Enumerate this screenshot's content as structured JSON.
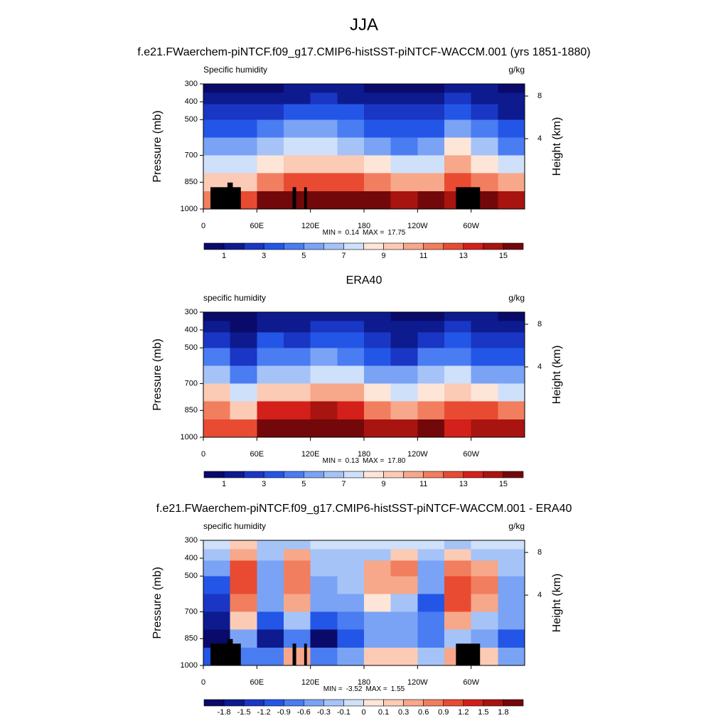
{
  "title": "JJA",
  "chart_data": [
    {
      "type": "contour",
      "title": "f.e21.FWaerchem-piNTCF.f09_g17.CMIP6-histSST-piNTCF-WACCM.001 (yrs 1851-1880)",
      "left_label": "Specific humidity",
      "right_label": "g/kg",
      "ylabel": "Pressure (mb)",
      "y2label": "Height (km)",
      "xlim": [
        0,
        360
      ],
      "xticks": [
        0,
        {
          "value": 60,
          "label": "60E"
        },
        {
          "value": 120,
          "label": "120E"
        },
        180,
        {
          "value": 240,
          "label": "120W"
        },
        {
          "value": 300,
          "label": "60W"
        }
      ],
      "ylim": [
        1000,
        300
      ],
      "yticks": [
        300,
        400,
        500,
        700,
        850,
        1000
      ],
      "y2ticks": [
        8,
        4
      ],
      "min_label": "MIN =",
      "min": 0.14,
      "max_label": "MAX =",
      "max": 17.75,
      "orography": true,
      "x": [
        15,
        45,
        75,
        105,
        135,
        165,
        195,
        225,
        255,
        285,
        315,
        345
      ],
      "levels": [
        325,
        375,
        450,
        550,
        650,
        750,
        850,
        950
      ],
      "z": [
        [
          0.7,
          0.8,
          0.9,
          1.1,
          1.2,
          1.1,
          0.9,
          0.7,
          0.8,
          1.4,
          1.0,
          0.7
        ],
        [
          1.2,
          1.3,
          1.6,
          1.9,
          2.0,
          1.8,
          1.5,
          1.2,
          1.3,
          2.4,
          1.6,
          1.1
        ],
        [
          2.0,
          2.3,
          2.8,
          3.2,
          3.3,
          3.0,
          2.5,
          2.0,
          2.2,
          3.8,
          2.6,
          1.8
        ],
        [
          3.4,
          3.6,
          4.3,
          5.0,
          5.0,
          4.6,
          3.8,
          3.1,
          3.5,
          5.8,
          4.0,
          3.0
        ],
        [
          5.0,
          5.5,
          6.2,
          7.0,
          7.0,
          6.6,
          5.6,
          4.8,
          5.3,
          8.0,
          6.0,
          4.6
        ],
        [
          7.5,
          7.8,
          8.6,
          9.5,
          9.5,
          9.2,
          8.0,
          7.0,
          7.6,
          10.2,
          8.5,
          7.0
        ],
        [
          9.5,
          9.0,
          11.5,
          12.5,
          12.5,
          12.2,
          11.0,
          10.0,
          10.5,
          12.5,
          11.5,
          10.0
        ],
        [
          11,
          12,
          15,
          16,
          16.5,
          16,
          15,
          14.5,
          15,
          14,
          15,
          14.5
        ]
      ],
      "colorbar": {
        "colors": [
          "#0a0a6b",
          "#0d1b8f",
          "#1a36c4",
          "#2356e6",
          "#4a7cf2",
          "#7aa3f5",
          "#a5c3f7",
          "#cfe0fa",
          "#fde5d8",
          "#fbcbb6",
          "#f7a78a",
          "#f17e5e",
          "#e84b32",
          "#d3201a",
          "#a8140f",
          "#73080a"
        ],
        "labels": [
          1,
          3,
          5,
          7,
          9,
          11,
          13,
          15
        ]
      }
    },
    {
      "type": "contour",
      "title": "ERA40",
      "left_label": "specific humidity",
      "right_label": "g/kg",
      "ylabel": "Pressure (mb)",
      "y2label": "Height (km)",
      "xlim": [
        0,
        360
      ],
      "xticks": [
        0,
        {
          "value": 60,
          "label": "60E"
        },
        {
          "value": 120,
          "label": "120E"
        },
        180,
        {
          "value": 240,
          "label": "120W"
        },
        {
          "value": 300,
          "label": "60W"
        }
      ],
      "ylim": [
        1000,
        300
      ],
      "yticks": [
        300,
        400,
        500,
        700,
        850,
        1000
      ],
      "y2ticks": [
        8,
        4
      ],
      "min_label": "MIN =",
      "min": 0.13,
      "max_label": "MAX =",
      "max": {
        "value": 17.8,
        "label": "17.80"
      },
      "orography": false,
      "x": [
        15,
        45,
        75,
        105,
        135,
        165,
        195,
        225,
        255,
        285,
        315,
        345
      ],
      "levels": [
        325,
        375,
        450,
        550,
        650,
        750,
        850,
        950
      ],
      "z": [
        [
          0.8,
          0.6,
          1.1,
          1.3,
          1.3,
          1.2,
          1.0,
          0.8,
          0.9,
          1.5,
          1.1,
          0.8
        ],
        [
          1.5,
          0.9,
          1.9,
          1.7,
          2.2,
          2.1,
          1.7,
          1.1,
          1.6,
          2.2,
          1.8,
          1.4
        ],
        [
          2.6,
          1.4,
          3.2,
          2.6,
          3.6,
          3.2,
          2.1,
          1.4,
          2.6,
          3.0,
          2.2,
          2.1
        ],
        [
          4.6,
          2.6,
          4.8,
          4.2,
          5.4,
          4.9,
          3.3,
          2.8,
          4.1,
          4.8,
          3.4,
          3.4
        ],
        [
          6.5,
          4.9,
          6.8,
          6.5,
          7.6,
          7.1,
          5.6,
          5.1,
          6.3,
          7.1,
          5.6,
          5.1
        ],
        [
          9.3,
          7.6,
          9.6,
          9.8,
          10.7,
          10.0,
          8.5,
          7.6,
          8.4,
          9.9,
          8.7,
          7.6
        ],
        [
          11.5,
          9.6,
          13.3,
          13.4,
          14.7,
          13.4,
          11.4,
          10.6,
          11.2,
          12.8,
          12.0,
          11.2
        ],
        [
          12,
          12.8,
          15.9,
          15.6,
          17.4,
          16.6,
          14.8,
          14.4,
          15.3,
          13.7,
          14.9,
          14.9
        ]
      ],
      "colorbar": {
        "colors": [
          "#0a0a6b",
          "#0d1b8f",
          "#1a36c4",
          "#2356e6",
          "#4a7cf2",
          "#7aa3f5",
          "#a5c3f7",
          "#cfe0fa",
          "#fde5d8",
          "#fbcbb6",
          "#f7a78a",
          "#f17e5e",
          "#e84b32",
          "#d3201a",
          "#a8140f",
          "#73080a"
        ],
        "labels": [
          1,
          3,
          5,
          7,
          9,
          11,
          13,
          15
        ]
      }
    },
    {
      "type": "contour",
      "title": "f.e21.FWaerchem-piNTCF.f09_g17.CMIP6-histSST-piNTCF-WACCM.001 - ERA40",
      "left_label": "specific humidity",
      "right_label": "g/kg",
      "ylabel": "Pressure (mb)",
      "y2label": "Height (km)",
      "xlim": [
        0,
        360
      ],
      "xticks": [
        0,
        {
          "value": 60,
          "label": "60E"
        },
        {
          "value": 120,
          "label": "120E"
        },
        180,
        {
          "value": 240,
          "label": "120W"
        },
        {
          "value": 300,
          "label": "60W"
        }
      ],
      "ylim": [
        1000,
        300
      ],
      "yticks": [
        300,
        400,
        500,
        700,
        850,
        1000
      ],
      "y2ticks": [
        8,
        4
      ],
      "min_label": "MIN =",
      "min": -3.52,
      "max_label": "MAX =",
      "max": 1.55,
      "orography": true,
      "x": [
        15,
        45,
        75,
        105,
        135,
        165,
        195,
        225,
        255,
        285,
        315,
        345
      ],
      "levels": [
        325,
        375,
        450,
        550,
        650,
        750,
        850,
        950
      ],
      "z": [
        [
          -0.1,
          0.2,
          -0.2,
          -0.3,
          -0.1,
          -0.05,
          -0.1,
          -0.05,
          -0.1,
          -0.2,
          -0.1,
          -0.05
        ],
        [
          -0.3,
          0.4,
          -0.3,
          0.3,
          -0.2,
          -0.3,
          -0.2,
          0.1,
          -0.3,
          0.2,
          -0.2,
          -0.3
        ],
        [
          -0.6,
          0.9,
          -0.4,
          0.6,
          -0.3,
          -0.2,
          0.4,
          0.6,
          -0.4,
          0.8,
          0.4,
          -0.3
        ],
        [
          -1.2,
          1.0,
          -0.5,
          0.8,
          -0.4,
          -0.3,
          0.5,
          0.3,
          -0.6,
          1.0,
          0.6,
          -0.4
        ],
        [
          -1.5,
          0.6,
          -0.6,
          0.5,
          -0.6,
          -0.5,
          0.0,
          -0.3,
          -1.0,
          0.9,
          0.4,
          -0.5
        ],
        [
          -1.8,
          0.2,
          -1.0,
          -0.3,
          -1.2,
          -0.8,
          -0.5,
          -0.6,
          -0.8,
          0.3,
          -0.2,
          -0.6
        ],
        [
          -2.0,
          -0.6,
          -1.8,
          -0.9,
          -2.2,
          -1.2,
          -0.4,
          -0.6,
          -0.7,
          -0.3,
          -0.5,
          -1.2
        ],
        [
          -1.0,
          -0.8,
          -0.9,
          0.4,
          -0.9,
          -0.6,
          0.2,
          0.1,
          -0.3,
          0.3,
          0.1,
          -0.4
        ]
      ],
      "colorbar": {
        "colors": [
          "#0a0a6b",
          "#0d1b8f",
          "#1a36c4",
          "#2356e6",
          "#4a7cf2",
          "#7aa3f5",
          "#a5c3f7",
          "#cfe0fa",
          "#fde5d8",
          "#fbcbb6",
          "#f7a78a",
          "#f17e5e",
          "#e84b32",
          "#d3201a",
          "#a8140f",
          "#73080a"
        ],
        "labels": [
          -1.8,
          -1.5,
          -1.2,
          -0.9,
          -0.6,
          -0.3,
          -0.1,
          0,
          0.1,
          0.3,
          0.6,
          0.9,
          1.2,
          1.5,
          1.8
        ]
      }
    }
  ]
}
